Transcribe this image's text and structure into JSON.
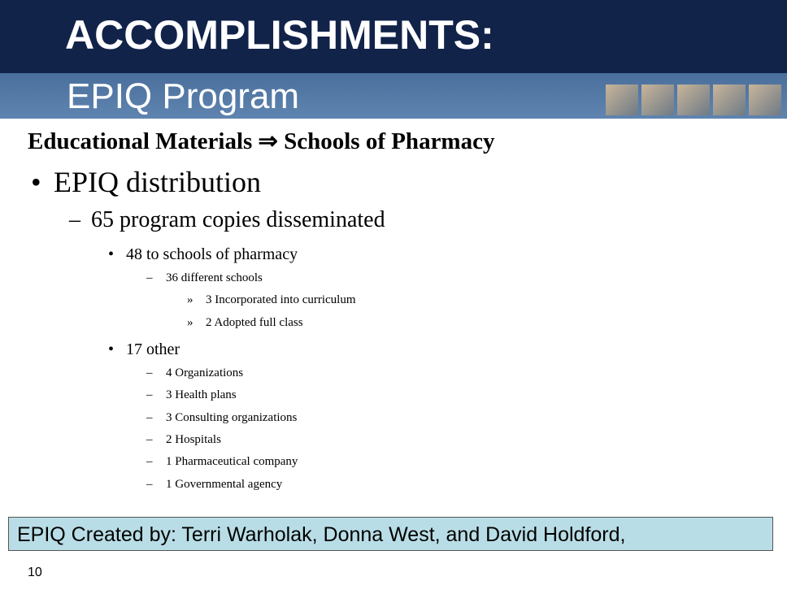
{
  "header": {
    "title": "ACCOMPLISHMENTS:",
    "subtitle": "EPIQ Program"
  },
  "heading": "Educational Materials ⇒ Schools of Pharmacy",
  "items": [
    {
      "marker": "•",
      "text": "EPIQ distribution"
    },
    {
      "marker": "–",
      "text": "65 program copies disseminated"
    },
    {
      "marker": "•",
      "text": "48 to schools of pharmacy"
    },
    {
      "marker": "–",
      "text": "36 different schools"
    },
    {
      "marker": "»",
      "text": "3 Incorporated into curriculum"
    },
    {
      "marker": "»",
      "text": "2 Adopted full class"
    },
    {
      "marker": "•",
      "text": "17 other"
    },
    {
      "marker": "–",
      "text": "4 Organizations"
    },
    {
      "marker": "–",
      "text": "3 Health plans"
    },
    {
      "marker": "–",
      "text": "3 Consulting organizations"
    },
    {
      "marker": "–",
      "text": "2 Hospitals"
    },
    {
      "marker": "–",
      "text": "1 Pharmaceutical company"
    },
    {
      "marker": "–",
      "text": "1 Governmental agency"
    }
  ],
  "footer_box": "EPIQ Created by:  Terri Warholak, Donna West, and David Holdford,",
  "page_number": "10"
}
